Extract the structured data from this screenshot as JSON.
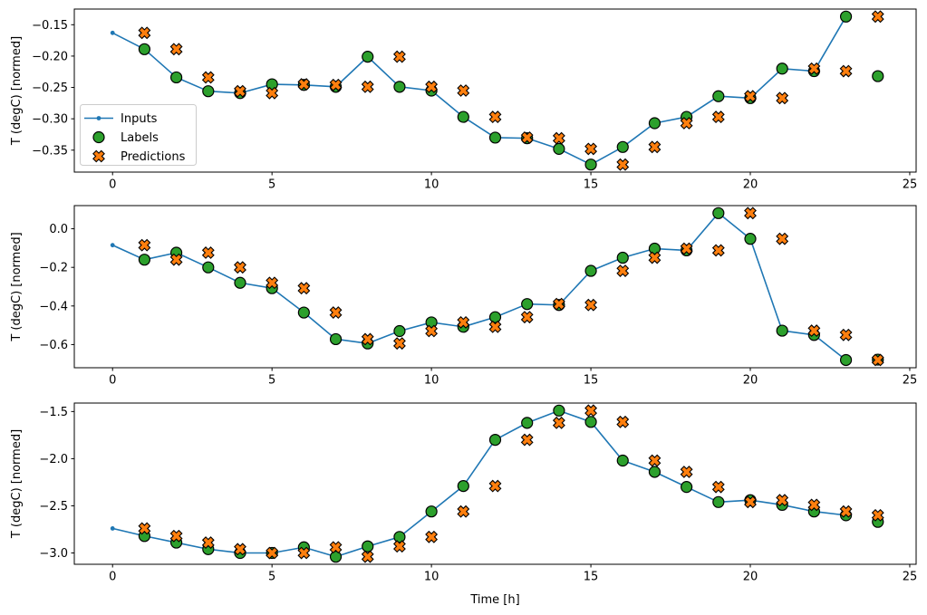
{
  "figure": {
    "background": "#ffffff",
    "xlabel": "Time [h]",
    "ylabel": "T (degC) [normed]",
    "legend": {
      "location": "upper left of subplot 1",
      "border_color": "#cccccc",
      "entries": [
        {
          "label": "Inputs",
          "marker": "line-with-dot",
          "color": "#1f77b4"
        },
        {
          "label": "Labels",
          "marker": "circle",
          "color": "#2ca02c"
        },
        {
          "label": "Predictions",
          "marker": "x-cross",
          "color": "#ff7f0e"
        }
      ]
    },
    "colors": {
      "inputs_line": "#1f77b4",
      "labels_fill": "#2ca02c",
      "predictions_fill": "#ff7f0e",
      "marker_edge": "#000000",
      "axis": "#000000",
      "text": "#000000"
    }
  },
  "chart_data": [
    {
      "type": "line",
      "subplot": 1,
      "ylabel": "T (degC) [normed]",
      "xlim": [
        -1.2,
        25.2
      ],
      "ylim": [
        -0.385,
        -0.125
      ],
      "xticks": [
        0,
        5,
        10,
        15,
        20,
        25
      ],
      "xtick_labels": [
        "0",
        "5",
        "10",
        "15",
        "20",
        "25"
      ],
      "yticks": [
        -0.15,
        -0.2,
        -0.25,
        -0.3,
        -0.35
      ],
      "ytick_labels": [
        "−0.15",
        "−0.20",
        "−0.25",
        "−0.30",
        "−0.35"
      ],
      "series": [
        {
          "name": "Inputs",
          "x": [
            0,
            1,
            2,
            3,
            4,
            5,
            6,
            7,
            8,
            9,
            10,
            11,
            12,
            13,
            14,
            15,
            16,
            17,
            18,
            19,
            20,
            21,
            22,
            23
          ],
          "y": [
            -0.163,
            -0.189,
            -0.234,
            -0.256,
            -0.259,
            -0.245,
            -0.246,
            -0.249,
            -0.201,
            -0.249,
            -0.255,
            -0.297,
            -0.33,
            -0.331,
            -0.348,
            -0.373,
            -0.345,
            -0.307,
            -0.297,
            -0.264,
            -0.267,
            -0.22,
            -0.224,
            -0.137
          ]
        },
        {
          "name": "Labels",
          "x": [
            1,
            2,
            3,
            4,
            5,
            6,
            7,
            8,
            9,
            10,
            11,
            12,
            13,
            14,
            15,
            16,
            17,
            18,
            19,
            20,
            21,
            22,
            23,
            24
          ],
          "y": [
            -0.189,
            -0.234,
            -0.256,
            -0.259,
            -0.245,
            -0.246,
            -0.249,
            -0.201,
            -0.249,
            -0.255,
            -0.297,
            -0.33,
            -0.331,
            -0.348,
            -0.373,
            -0.345,
            -0.307,
            -0.297,
            -0.264,
            -0.267,
            -0.22,
            -0.224,
            -0.137,
            -0.232
          ]
        },
        {
          "name": "Predictions",
          "x": [
            1,
            2,
            3,
            4,
            5,
            6,
            7,
            8,
            9,
            10,
            11,
            12,
            13,
            14,
            15,
            16,
            17,
            18,
            19,
            20,
            21,
            22,
            23,
            24
          ],
          "y": [
            -0.163,
            -0.189,
            -0.234,
            -0.256,
            -0.259,
            -0.245,
            -0.246,
            -0.249,
            -0.201,
            -0.249,
            -0.255,
            -0.297,
            -0.33,
            -0.331,
            -0.348,
            -0.373,
            -0.345,
            -0.307,
            -0.297,
            -0.264,
            -0.267,
            -0.22,
            -0.224,
            -0.137
          ]
        }
      ]
    },
    {
      "type": "line",
      "subplot": 2,
      "ylabel": "T (degC) [normed]",
      "xlim": [
        -1.2,
        25.2
      ],
      "ylim": [
        -0.72,
        0.12
      ],
      "xticks": [
        0,
        5,
        10,
        15,
        20,
        25
      ],
      "xtick_labels": [
        "0",
        "5",
        "10",
        "15",
        "20",
        "25"
      ],
      "yticks": [
        0.0,
        -0.2,
        -0.4,
        -0.6
      ],
      "ytick_labels": [
        "0.0",
        "−0.2",
        "−0.4",
        "−0.6"
      ],
      "series": [
        {
          "name": "Inputs",
          "x": [
            0,
            1,
            2,
            3,
            4,
            5,
            6,
            7,
            8,
            9,
            10,
            11,
            12,
            13,
            14,
            15,
            16,
            17,
            18,
            19,
            20,
            21,
            22,
            23
          ],
          "y": [
            -0.085,
            -0.16,
            -0.124,
            -0.2,
            -0.28,
            -0.308,
            -0.434,
            -0.572,
            -0.594,
            -0.53,
            -0.485,
            -0.508,
            -0.458,
            -0.39,
            -0.395,
            -0.218,
            -0.15,
            -0.103,
            -0.112,
            0.081,
            -0.052,
            -0.528,
            -0.55,
            -0.68
          ]
        },
        {
          "name": "Labels",
          "x": [
            1,
            2,
            3,
            4,
            5,
            6,
            7,
            8,
            9,
            10,
            11,
            12,
            13,
            14,
            15,
            16,
            17,
            18,
            19,
            20,
            21,
            22,
            23,
            24
          ],
          "y": [
            -0.16,
            -0.124,
            -0.2,
            -0.28,
            -0.308,
            -0.434,
            -0.572,
            -0.594,
            -0.53,
            -0.485,
            -0.508,
            -0.458,
            -0.39,
            -0.395,
            -0.218,
            -0.15,
            -0.103,
            -0.112,
            0.081,
            -0.052,
            -0.528,
            -0.55,
            -0.68,
            -0.678
          ]
        },
        {
          "name": "Predictions",
          "x": [
            1,
            2,
            3,
            4,
            5,
            6,
            7,
            8,
            9,
            10,
            11,
            12,
            13,
            14,
            15,
            16,
            17,
            18,
            19,
            20,
            21,
            22,
            23,
            24
          ],
          "y": [
            -0.085,
            -0.16,
            -0.124,
            -0.2,
            -0.28,
            -0.308,
            -0.434,
            -0.572,
            -0.594,
            -0.53,
            -0.485,
            -0.508,
            -0.458,
            -0.39,
            -0.395,
            -0.218,
            -0.15,
            -0.103,
            -0.112,
            0.081,
            -0.052,
            -0.528,
            -0.55,
            -0.68
          ]
        }
      ]
    },
    {
      "type": "line",
      "subplot": 3,
      "ylabel": "T (degC) [normed]",
      "xlabel": "Time [h]",
      "xlim": [
        -1.2,
        25.2
      ],
      "ylim": [
        -3.12,
        -1.41
      ],
      "xticks": [
        0,
        5,
        10,
        15,
        20,
        25
      ],
      "xtick_labels": [
        "0",
        "5",
        "10",
        "15",
        "20",
        "25"
      ],
      "yticks": [
        -1.5,
        -2.0,
        -2.5,
        -3.0
      ],
      "ytick_labels": [
        "−1.5",
        "−2.0",
        "−2.5",
        "−3.0"
      ],
      "series": [
        {
          "name": "Inputs",
          "x": [
            0,
            1,
            2,
            3,
            4,
            5,
            6,
            7,
            8,
            9,
            10,
            11,
            12,
            13,
            14,
            15,
            16,
            17,
            18,
            19,
            20,
            21,
            22,
            23
          ],
          "y": [
            -2.74,
            -2.82,
            -2.89,
            -2.96,
            -3.0,
            -3.0,
            -2.94,
            -3.04,
            -2.93,
            -2.83,
            -2.56,
            -2.29,
            -1.8,
            -1.62,
            -1.49,
            -1.61,
            -2.02,
            -2.14,
            -2.3,
            -2.46,
            -2.44,
            -2.49,
            -2.56,
            -2.6
          ]
        },
        {
          "name": "Labels",
          "x": [
            1,
            2,
            3,
            4,
            5,
            6,
            7,
            8,
            9,
            10,
            11,
            12,
            13,
            14,
            15,
            16,
            17,
            18,
            19,
            20,
            21,
            22,
            23,
            24
          ],
          "y": [
            -2.82,
            -2.89,
            -2.96,
            -3.0,
            -3.0,
            -2.94,
            -3.04,
            -2.93,
            -2.83,
            -2.56,
            -2.29,
            -1.8,
            -1.62,
            -1.49,
            -1.61,
            -2.02,
            -2.14,
            -2.3,
            -2.46,
            -2.44,
            -2.49,
            -2.56,
            -2.6,
            -2.67
          ]
        },
        {
          "name": "Predictions",
          "x": [
            1,
            2,
            3,
            4,
            5,
            6,
            7,
            8,
            9,
            10,
            11,
            12,
            13,
            14,
            15,
            16,
            17,
            18,
            19,
            20,
            21,
            22,
            23,
            24
          ],
          "y": [
            -2.74,
            -2.82,
            -2.89,
            -2.96,
            -3.0,
            -3.0,
            -2.94,
            -3.04,
            -2.93,
            -2.83,
            -2.56,
            -2.29,
            -1.8,
            -1.62,
            -1.49,
            -1.61,
            -2.02,
            -2.14,
            -2.3,
            -2.46,
            -2.44,
            -2.49,
            -2.56,
            -2.6
          ]
        }
      ]
    }
  ]
}
